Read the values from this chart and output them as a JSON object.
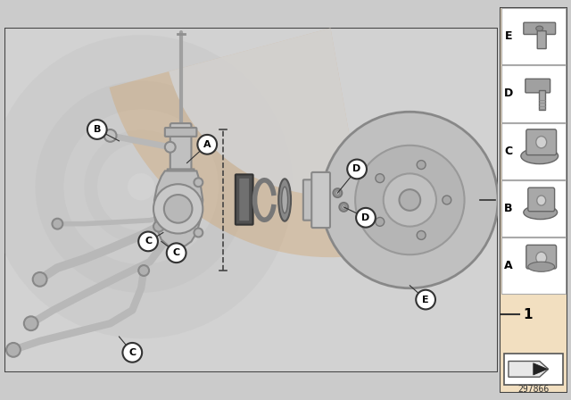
{
  "bg_color": "#cbcbcb",
  "main_bg": "#d2d2d2",
  "right_panel_bg": "#f2dfc0",
  "border_color": "#444444",
  "part_number": "297866",
  "labels_main": [
    "A",
    "B",
    "C",
    "C",
    "C",
    "D",
    "D",
    "E"
  ],
  "panel_labels": [
    "E",
    "D",
    "C",
    "B",
    "A"
  ],
  "ref_number": "1",
  "fig_width": 6.4,
  "fig_height": 4.48,
  "dpi": 100,
  "watermark_circle_color": "#c0c0c0",
  "watermark_arc_color": "#dbb580",
  "part_color": "#c8c8c8",
  "part_edge": "#888888",
  "dark_part_color": "#606060",
  "label_bg": "#ffffff",
  "label_edge": "#333333"
}
